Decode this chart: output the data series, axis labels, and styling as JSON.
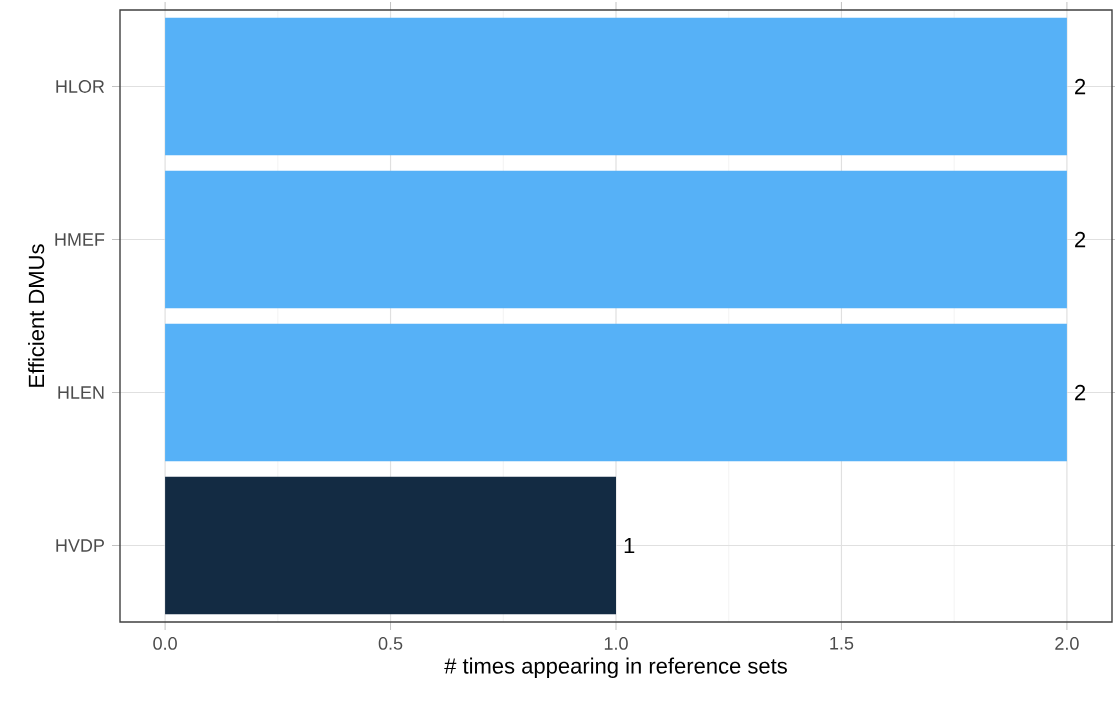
{
  "chart_data": {
    "type": "bar",
    "orientation": "horizontal",
    "xlabel": "# times appearing in reference sets",
    "ylabel": "Efficient DMUs",
    "categories": [
      "HLOR",
      "HMEF",
      "HLEN",
      "HVDP"
    ],
    "values": [
      2,
      2,
      2,
      1
    ],
    "colors": [
      "#56b1f7",
      "#56b1f7",
      "#56b1f7",
      "#132b43"
    ],
    "xlim": [
      -0.1,
      2.1
    ],
    "xticks": [
      {
        "value": 0,
        "label": "0.0"
      },
      {
        "value": 0.5,
        "label": "0.5"
      },
      {
        "value": 1,
        "label": "1.0"
      },
      {
        "value": 1.5,
        "label": "1.5"
      },
      {
        "value": 2,
        "label": "2.0"
      }
    ],
    "data_labels": true,
    "grid": true
  }
}
